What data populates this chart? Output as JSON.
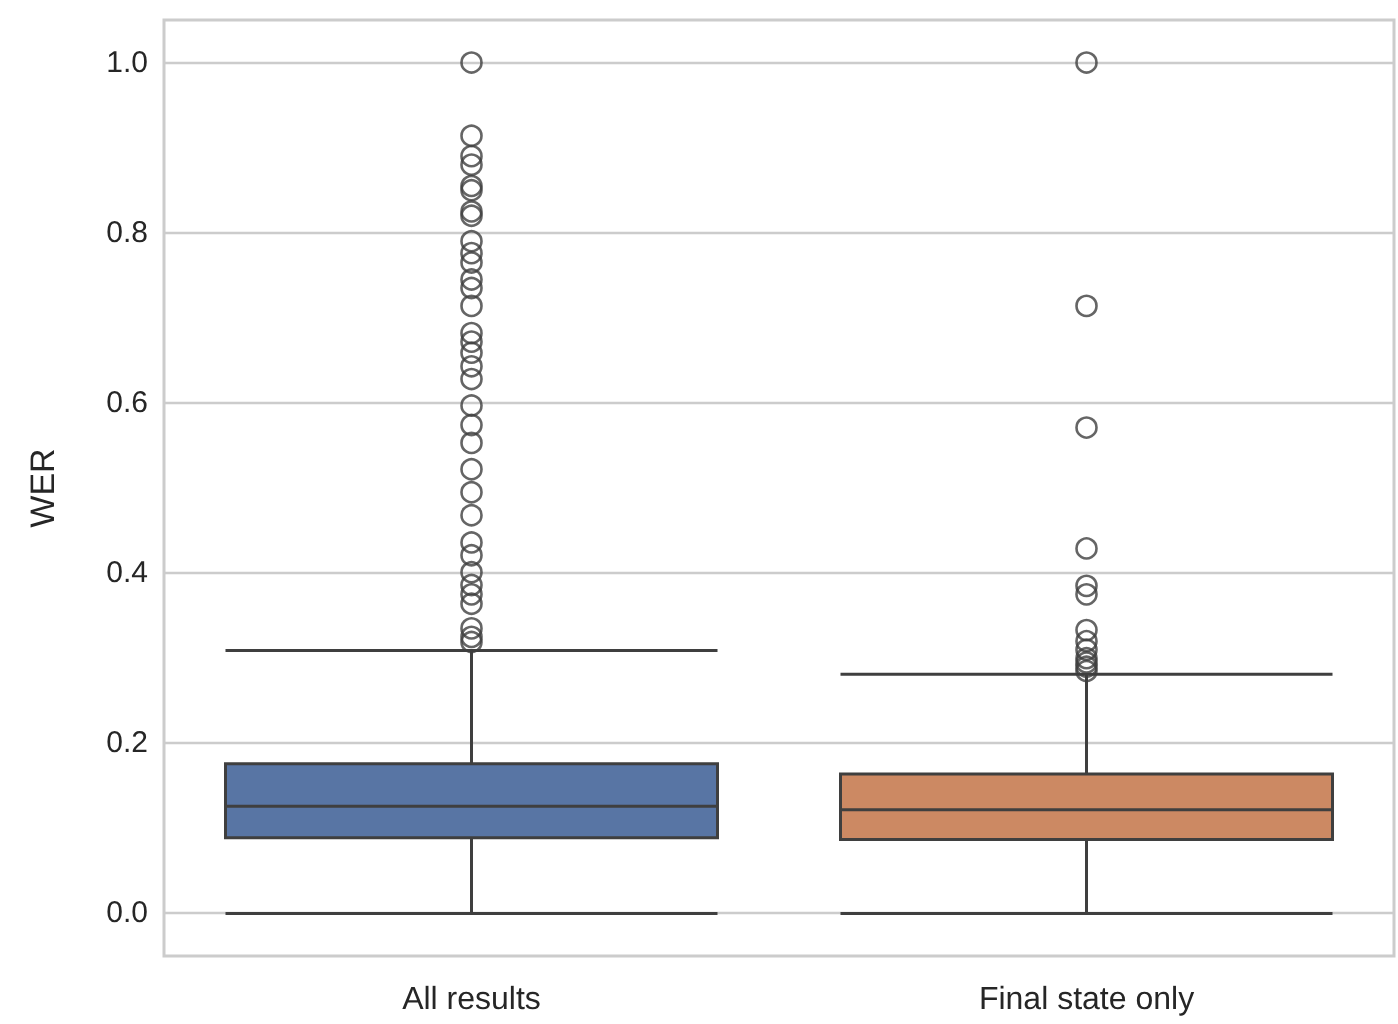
{
  "chart_data": {
    "type": "box",
    "ylabel": "WER",
    "categories": [
      "All results",
      "Final state only"
    ],
    "colors": [
      "#5875a4",
      "#cc8963"
    ],
    "boxes": [
      {
        "low": 0,
        "q1": 0.089,
        "median": 0.126,
        "q3": 0.176,
        "high": 0.309,
        "outliers": [
          1.0,
          0.914,
          0.89,
          0.88,
          0.855,
          0.85,
          0.825,
          0.82,
          0.79,
          0.776,
          0.765,
          0.745,
          0.735,
          0.714,
          0.682,
          0.672,
          0.659,
          0.643,
          0.628,
          0.597,
          0.574,
          0.553,
          0.522,
          0.495,
          0.468,
          0.436,
          0.421,
          0.401,
          0.386,
          0.375,
          0.364,
          0.335,
          0.325,
          0.319
        ]
      },
      {
        "low": 0,
        "q1": 0.087,
        "median": 0.122,
        "q3": 0.164,
        "high": 0.281,
        "outliers": [
          1.0,
          0.714,
          0.571,
          0.429,
          0.385,
          0.375,
          0.333,
          0.32,
          0.31,
          0.3,
          0.295,
          0.29,
          0.285
        ]
      }
    ],
    "ylim": [
      -0.05,
      1.05
    ],
    "yticks": [
      {
        "value": 0,
        "label": "0.0"
      },
      {
        "value": 0.2,
        "label": "0.2"
      },
      {
        "value": 0.4,
        "label": "0.4"
      },
      {
        "value": 0.6,
        "label": "0.6"
      },
      {
        "value": 0.8,
        "label": "0.8"
      },
      {
        "value": 1,
        "label": "1.0"
      }
    ],
    "grid": "y"
  }
}
